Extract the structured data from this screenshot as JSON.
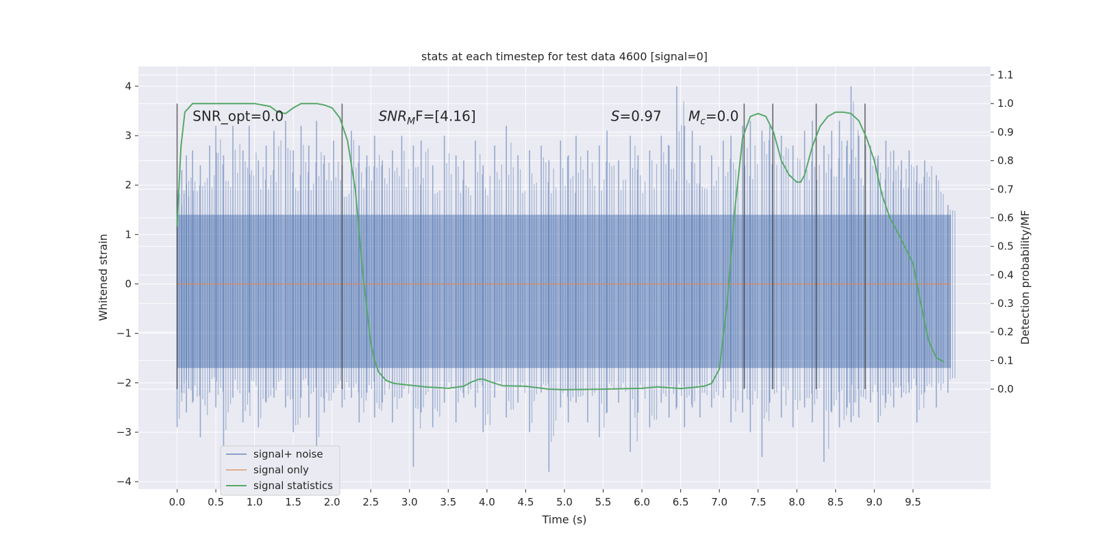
{
  "chart_data": {
    "type": "line",
    "title": "stats at each timestep for test data 4600 [signal=0]",
    "xlabel": "Time (s)",
    "ylabel": "Whitened strain",
    "y2label": "Detection probability/MF",
    "xlim": [
      -0.5,
      10.5
    ],
    "ylim": [
      -4.15,
      4.4
    ],
    "y2lim": [
      -0.35,
      1.13
    ],
    "xticks": [
      0.0,
      0.5,
      1.0,
      1.5,
      2.0,
      2.5,
      3.0,
      3.5,
      4.0,
      4.5,
      5.0,
      5.5,
      6.0,
      6.5,
      7.0,
      7.5,
      8.0,
      8.5,
      9.0,
      9.5
    ],
    "xtick_labels": [
      "0.0",
      "0.5",
      "1.0",
      "1.5",
      "2.0",
      "2.5",
      "3.0",
      "3.5",
      "4.0",
      "4.5",
      "5.0",
      "5.5",
      "6.0",
      "6.5",
      "7.0",
      "7.5",
      "8.0",
      "8.5",
      "9.0",
      "9.5"
    ],
    "yticks": [
      -4,
      -3,
      -2,
      -1,
      0,
      1,
      2,
      3,
      4
    ],
    "ytick_labels": [
      "−4",
      "−3",
      "−2",
      "−1",
      "0",
      "1",
      "2",
      "3",
      "4"
    ],
    "y2ticks": [
      0.0,
      0.1,
      0.2,
      0.3,
      0.4,
      0.5,
      0.6,
      0.7,
      0.8,
      0.9,
      1.0,
      1.1
    ],
    "y2tick_labels": [
      "0.0",
      "0.1",
      "0.2",
      "0.3",
      "0.4",
      "0.5",
      "0.6",
      "0.7",
      "0.8",
      "0.9",
      "1.0",
      "1.1"
    ],
    "grid": true,
    "legend_position": "lower-left",
    "legend": [
      {
        "label": "signal+ noise",
        "color": "#4c72b0"
      },
      {
        "label": "signal only",
        "color": "#dd8452"
      },
      {
        "label": "signal statistics",
        "color": "#55a868"
      }
    ],
    "annotations": [
      {
        "text": "SNR_opt=0.0",
        "x": 0.2,
        "y": 3.3
      },
      {
        "main": "SNR",
        "sub": "M",
        "rest": "F=[4.16]",
        "x": 2.6,
        "y": 3.3
      },
      {
        "main": "S",
        "rest": "=0.97",
        "x": 5.6,
        "y": 3.3
      },
      {
        "main": "M",
        "sub": "c",
        "rest": "=0.0",
        "x": 6.6,
        "y": 3.3
      }
    ],
    "series": [
      {
        "name": "signal+ noise",
        "color": "#4c72b0",
        "t_range": [
          0.0,
          9.99
        ],
        "band": [
          -1.7,
          1.4
        ],
        "peaks": [
          [
            0.0,
            1.9,
            -2.9
          ],
          [
            0.06,
            2.3,
            -2.2
          ],
          [
            0.12,
            2.6,
            -2.6
          ],
          [
            0.2,
            2.7,
            -2.4
          ],
          [
            0.3,
            2.4,
            -3.1
          ],
          [
            0.42,
            2.8,
            -2.2
          ],
          [
            0.5,
            3.2,
            -2.5
          ],
          [
            0.6,
            2.6,
            -3.3
          ],
          [
            0.72,
            3.2,
            -2.3
          ],
          [
            0.85,
            2.7,
            -2.8
          ],
          [
            0.93,
            3.2,
            -2.2
          ],
          [
            1.05,
            2.5,
            -2.9
          ],
          [
            1.15,
            2.8,
            -2.4
          ],
          [
            1.25,
            3.1,
            -2.3
          ],
          [
            1.4,
            3.3,
            -2.5
          ],
          [
            1.5,
            2.7,
            -3.0
          ],
          [
            1.6,
            3.2,
            -2.3
          ],
          [
            1.7,
            2.8,
            -2.7
          ],
          [
            1.8,
            3.3,
            -3.3
          ],
          [
            1.9,
            2.6,
            -2.6
          ],
          [
            2.02,
            2.9,
            -2.2
          ],
          [
            2.13,
            2.4,
            -2.5
          ],
          [
            2.25,
            3.1,
            -2.3
          ],
          [
            2.35,
            2.8,
            -2.8
          ],
          [
            2.45,
            2.6,
            -2.2
          ],
          [
            2.55,
            3.0,
            -2.7
          ],
          [
            2.65,
            2.5,
            -2.4
          ],
          [
            2.78,
            2.7,
            -2.8
          ],
          [
            2.9,
            3.0,
            -2.3
          ],
          [
            3.05,
            2.8,
            -3.7
          ],
          [
            3.15,
            2.9,
            -2.6
          ],
          [
            3.3,
            2.4,
            -2.9
          ],
          [
            3.45,
            3.0,
            -2.4
          ],
          [
            3.6,
            2.6,
            -2.8
          ],
          [
            3.7,
            2.5,
            -2.3
          ],
          [
            3.85,
            2.9,
            -2.5
          ],
          [
            3.95,
            2.4,
            -3.0
          ],
          [
            4.1,
            2.8,
            -2.3
          ],
          [
            4.25,
            3.2,
            -2.7
          ],
          [
            4.4,
            2.6,
            -2.4
          ],
          [
            4.55,
            2.7,
            -3.0
          ],
          [
            4.7,
            2.8,
            -2.2
          ],
          [
            4.8,
            2.5,
            -3.8
          ],
          [
            4.95,
            2.9,
            -2.5
          ],
          [
            5.05,
            2.6,
            -2.8
          ],
          [
            5.15,
            3.0,
            -2.4
          ],
          [
            5.3,
            2.7,
            -2.8
          ],
          [
            5.45,
            2.8,
            -3.1
          ],
          [
            5.55,
            3.1,
            -2.6
          ],
          [
            5.7,
            2.5,
            -2.4
          ],
          [
            5.85,
            3.0,
            -3.4
          ],
          [
            5.95,
            2.6,
            -2.6
          ],
          [
            6.1,
            2.7,
            -2.9
          ],
          [
            6.25,
            3.0,
            -2.4
          ],
          [
            6.35,
            2.8,
            -2.7
          ],
          [
            6.45,
            4.0,
            -2.5
          ],
          [
            6.55,
            3.2,
            -2.9
          ],
          [
            6.65,
            3.1,
            -2.5
          ],
          [
            6.75,
            2.8,
            -2.7
          ],
          [
            6.9,
            2.6,
            -2.5
          ],
          [
            7.05,
            2.9,
            -2.3
          ],
          [
            7.15,
            3.0,
            -2.8
          ],
          [
            7.3,
            3.2,
            -2.6
          ],
          [
            7.4,
            3.3,
            -3.0
          ],
          [
            7.55,
            3.1,
            -3.5
          ],
          [
            7.65,
            3.2,
            -2.4
          ],
          [
            7.8,
            3.0,
            -2.7
          ],
          [
            7.95,
            2.8,
            -2.9
          ],
          [
            8.1,
            3.1,
            -2.5
          ],
          [
            8.2,
            3.3,
            -2.8
          ],
          [
            8.35,
            2.8,
            -3.6
          ],
          [
            8.45,
            3.1,
            -2.6
          ],
          [
            8.55,
            3.3,
            -2.9
          ],
          [
            8.65,
            2.9,
            -2.5
          ],
          [
            8.7,
            4.0,
            -2.8
          ],
          [
            8.8,
            3.0,
            -2.7
          ],
          [
            8.95,
            2.8,
            -2.4
          ],
          [
            9.05,
            2.6,
            -2.8
          ],
          [
            9.15,
            2.9,
            -2.4
          ],
          [
            9.25,
            2.7,
            -2.5
          ],
          [
            9.35,
            2.5,
            -2.3
          ],
          [
            9.45,
            2.7,
            -2.2
          ],
          [
            9.55,
            2.4,
            -2.8
          ],
          [
            9.65,
            2.5,
            -2.2
          ],
          [
            9.8,
            2.2,
            -2.5
          ],
          [
            9.95,
            1.6,
            -2.2
          ]
        ]
      },
      {
        "name": "signal only",
        "color": "#dd8452",
        "x": [
          0.0,
          9.99
        ],
        "y": [
          0.0,
          0.0
        ]
      },
      {
        "name": "signal statistics",
        "color": "#55a868",
        "axis": "right",
        "x": [
          0.0,
          0.05,
          0.1,
          0.2,
          0.4,
          0.8,
          1.0,
          1.2,
          1.3,
          1.4,
          1.5,
          1.6,
          1.8,
          1.9,
          2.0,
          2.1,
          2.2,
          2.3,
          2.4,
          2.5,
          2.55,
          2.6,
          2.7,
          2.8,
          3.0,
          3.2,
          3.5,
          3.7,
          3.8,
          3.9,
          3.95,
          4.05,
          4.2,
          4.5,
          4.8,
          5.0,
          5.5,
          6.0,
          6.2,
          6.5,
          6.8,
          6.9,
          7.0,
          7.1,
          7.2,
          7.3,
          7.4,
          7.5,
          7.6,
          7.7,
          7.8,
          7.9,
          8.0,
          8.05,
          8.1,
          8.2,
          8.3,
          8.4,
          8.5,
          8.6,
          8.7,
          8.8,
          8.9,
          9.0,
          9.1,
          9.2,
          9.3,
          9.5,
          9.6,
          9.7,
          9.8,
          9.9
        ],
        "y": [
          0.57,
          0.85,
          0.97,
          1.0,
          1.0,
          1.0,
          1.0,
          0.99,
          0.97,
          0.965,
          0.985,
          1.0,
          1.0,
          0.995,
          0.985,
          0.95,
          0.87,
          0.7,
          0.4,
          0.16,
          0.1,
          0.06,
          0.03,
          0.02,
          0.014,
          0.008,
          0.003,
          0.01,
          0.025,
          0.035,
          0.035,
          0.025,
          0.012,
          0.01,
          0.0,
          -0.002,
          0.0,
          0.003,
          0.008,
          0.002,
          0.01,
          0.02,
          0.07,
          0.3,
          0.63,
          0.88,
          0.955,
          0.965,
          0.955,
          0.9,
          0.8,
          0.75,
          0.725,
          0.725,
          0.75,
          0.85,
          0.92,
          0.955,
          0.97,
          0.97,
          0.965,
          0.94,
          0.88,
          0.8,
          0.68,
          0.6,
          0.55,
          0.44,
          0.3,
          0.17,
          0.11,
          0.095
        ]
      }
    ],
    "vlines": [
      0.0,
      2.13,
      7.32,
      7.69,
      8.25,
      8.88
    ]
  }
}
